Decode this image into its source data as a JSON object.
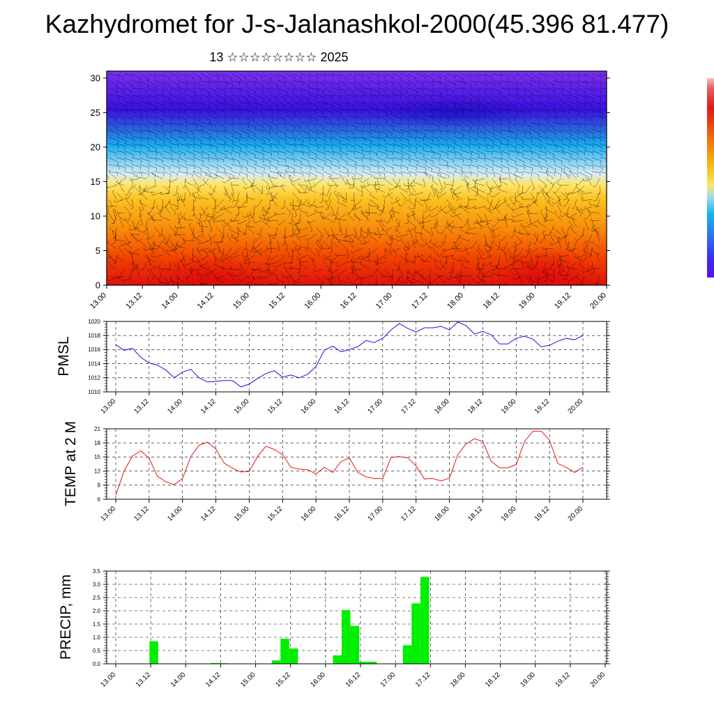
{
  "title": "Kazhydromet for J-s-Jalanashkol-2000(45.396 81.477)",
  "subtitle": "13 ☆☆☆☆☆☆☆☆ 2025",
  "colors": {
    "pmsl_line": "#1414e6",
    "temp_line": "#e61414",
    "precip_bar": "#00ee00",
    "grid": "#000000"
  },
  "chart_data": [
    {
      "type": "heatmap",
      "name": "cross-section",
      "x_ticks": [
        "13.00",
        "13.12",
        "14.00",
        "14.12",
        "15.00",
        "15.12",
        "16.00",
        "16.12",
        "17.00",
        "17.12",
        "18.00",
        "18.12",
        "19.00",
        "19.12",
        "20.00"
      ],
      "y_ticks": [
        "0",
        "5",
        "10",
        "15",
        "20",
        "25",
        "30"
      ],
      "ylim": [
        0,
        31
      ],
      "colorbar": "purple (cold, aloft) to red (warm, surface)",
      "overlay": "wind barbs"
    },
    {
      "type": "line",
      "ylabel": "PMSL",
      "x_ticks": [
        "13.00",
        "13.12",
        "14.00",
        "14.12",
        "15.00",
        "15.12",
        "16.00",
        "16.12",
        "17.00",
        "17.12",
        "18.00",
        "18.12",
        "19.00",
        "19.12",
        "20.00"
      ],
      "y_ticks": [
        "1010",
        "1012",
        "1014",
        "1016",
        "1018",
        "1020"
      ],
      "ylim": [
        1010,
        1020
      ],
      "values": [
        1016.7,
        1015.9,
        1016.2,
        1014.9,
        1014.1,
        1013.8,
        1013.1,
        1012.0,
        1012.8,
        1013.2,
        1012.0,
        1011.4,
        1011.5,
        1011.6,
        1011.6,
        1010.7,
        1011.1,
        1011.9,
        1012.6,
        1013.0,
        1012.1,
        1012.4,
        1012.0,
        1012.5,
        1013.6,
        1015.9,
        1016.5,
        1015.7,
        1016.0,
        1016.4,
        1017.3,
        1017.0,
        1017.6,
        1018.8,
        1019.7,
        1019.0,
        1018.5,
        1019.1,
        1019.1,
        1019.3,
        1018.8,
        1019.9,
        1019.4,
        1018.2,
        1018.6,
        1018.1,
        1016.8,
        1016.8,
        1017.6,
        1017.9,
        1017.5,
        1016.4,
        1016.6,
        1017.2,
        1017.6,
        1017.4,
        1018.0
      ]
    },
    {
      "type": "line",
      "ylabel": "TEMP at 2 M",
      "x_ticks": [
        "13.00",
        "13.12",
        "14.00",
        "14.12",
        "15.00",
        "15.12",
        "16.00",
        "16.12",
        "17.00",
        "17.12",
        "18.00",
        "18.12",
        "19.00",
        "19.12",
        "20.00"
      ],
      "y_ticks": [
        "6",
        "9",
        "12",
        "15",
        "18",
        "21"
      ],
      "ylim": [
        6,
        21
      ],
      "values": [
        6.9,
        12.0,
        15.2,
        16.3,
        14.7,
        10.9,
        9.7,
        9.1,
        10.4,
        15.1,
        17.5,
        18.2,
        16.7,
        13.7,
        12.6,
        11.8,
        11.9,
        15.1,
        17.3,
        16.6,
        15.5,
        12.8,
        12.4,
        12.3,
        11.4,
        12.8,
        11.7,
        14.0,
        14.8,
        11.7,
        10.8,
        10.4,
        10.4,
        14.9,
        15.1,
        14.8,
        13.1,
        10.3,
        10.4,
        9.9,
        10.5,
        15.5,
        17.8,
        18.9,
        18.3,
        14.1,
        12.7,
        12.7,
        13.4,
        18.3,
        20.5,
        20.5,
        18.6,
        13.6,
        12.8,
        11.7,
        12.8
      ]
    },
    {
      "type": "bar",
      "ylabel": "PRECIP, mm",
      "x_ticks": [
        "13.00",
        "13.12",
        "14.00",
        "14.12",
        "15.00",
        "15.12",
        "16.00",
        "16.12",
        "17.00",
        "17.12",
        "18.00",
        "18.12",
        "19.00",
        "19.12",
        "20.00"
      ],
      "y_ticks": [
        "0.0",
        "0.5",
        "1.0",
        "1.5",
        "2.0",
        "2.5",
        "3.0",
        "3.5"
      ],
      "ylim": [
        0,
        3.5
      ],
      "values": [
        0,
        0,
        0,
        0,
        0.85,
        0,
        0,
        0,
        0,
        0,
        0,
        0.03,
        0.02,
        0,
        0,
        0,
        0,
        0,
        0.13,
        0.95,
        0.58,
        0,
        0,
        0,
        0,
        0.32,
        2.03,
        1.43,
        0.08,
        0.08,
        0,
        0,
        0,
        0.7,
        2.28,
        3.28,
        0,
        0,
        0,
        0,
        0,
        0,
        0,
        0,
        0,
        0,
        0,
        0,
        0,
        0,
        0,
        0,
        0,
        0,
        0,
        0
      ]
    }
  ]
}
